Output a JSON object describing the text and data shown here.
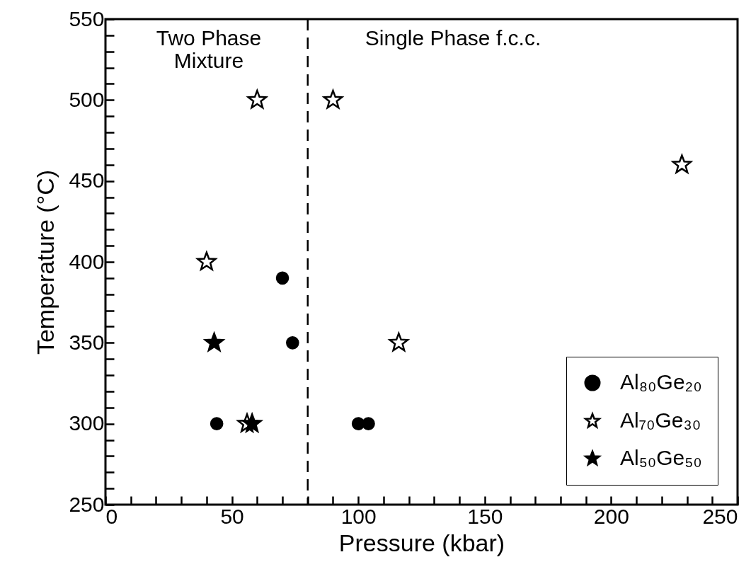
{
  "chart_data": {
    "type": "scatter",
    "xlabel": "Pressure (kbar)",
    "ylabel": "Temperature (°C)",
    "annotations": [
      "Two Phase Mixture",
      "Single Phase f.c.c."
    ],
    "xlim": [
      0,
      250
    ],
    "ylim": [
      250,
      550
    ],
    "xticks": [
      0,
      {
        "value": 10,
        "label": null
      },
      {
        "value": 20,
        "label": null
      },
      {
        "value": 30,
        "label": null
      },
      {
        "value": 40,
        "label": null
      },
      50,
      {
        "value": 60,
        "label": null
      },
      {
        "value": 70,
        "label": null
      },
      {
        "value": 80,
        "label": null
      },
      {
        "value": 90,
        "label": null
      },
      100,
      {
        "value": 110,
        "label": null
      },
      {
        "value": 120,
        "label": null
      },
      {
        "value": 130,
        "label": null
      },
      {
        "value": 140,
        "label": null
      },
      150,
      {
        "value": 160,
        "label": null
      },
      {
        "value": 170,
        "label": null
      },
      {
        "value": 180,
        "label": null
      },
      {
        "value": 190,
        "label": null
      },
      200,
      {
        "value": 210,
        "label": null
      },
      {
        "value": 220,
        "label": null
      },
      {
        "value": 230,
        "label": null
      },
      {
        "value": 240,
        "label": null
      },
      250
    ],
    "yticks": [
      250,
      {
        "value": 260,
        "label": null
      },
      {
        "value": 270,
        "label": null
      },
      {
        "value": 280,
        "label": null
      },
      {
        "value": 290,
        "label": null
      },
      300,
      {
        "value": 310,
        "label": null
      },
      {
        "value": 320,
        "label": null
      },
      {
        "value": 330,
        "label": null
      },
      {
        "value": 340,
        "label": null
      },
      350,
      {
        "value": 360,
        "label": null
      },
      {
        "value": 370,
        "label": null
      },
      {
        "value": 380,
        "label": null
      },
      {
        "value": 390,
        "label": null
      },
      400,
      {
        "value": 410,
        "label": null
      },
      {
        "value": 420,
        "label": null
      },
      {
        "value": 430,
        "label": null
      },
      {
        "value": 440,
        "label": null
      },
      450,
      {
        "value": 460,
        "label": null
      },
      {
        "value": 470,
        "label": null
      },
      {
        "value": 480,
        "label": null
      },
      {
        "value": 490,
        "label": null
      },
      500,
      {
        "value": 510,
        "label": null
      },
      {
        "value": 520,
        "label": null
      },
      {
        "value": 530,
        "label": null
      },
      {
        "value": 540,
        "label": null
      },
      550
    ],
    "ref_lines": [
      {
        "axis": "x",
        "value": 80,
        "line_style": "dashed",
        "color": "#000000"
      }
    ],
    "legend": "bottom right",
    "series": [
      {
        "name": "Al₈₀Ge₂₀",
        "color": "#000000",
        "marker": "circle",
        "x": [
          44,
          70,
          74,
          100,
          104
        ],
        "values": [
          300,
          390,
          350,
          300,
          300
        ]
      },
      {
        "name": "Al₇₀Ge₃₀",
        "color": "#ffffff",
        "marker": "star",
        "x": [
          40,
          56,
          60,
          90,
          116,
          228
        ],
        "values": [
          400,
          300,
          500,
          500,
          350,
          460
        ]
      },
      {
        "name": "Al₅₀Ge₅₀",
        "color": "#000000",
        "marker": "star",
        "x": [
          43,
          58
        ],
        "values": [
          350,
          300
        ]
      }
    ]
  }
}
